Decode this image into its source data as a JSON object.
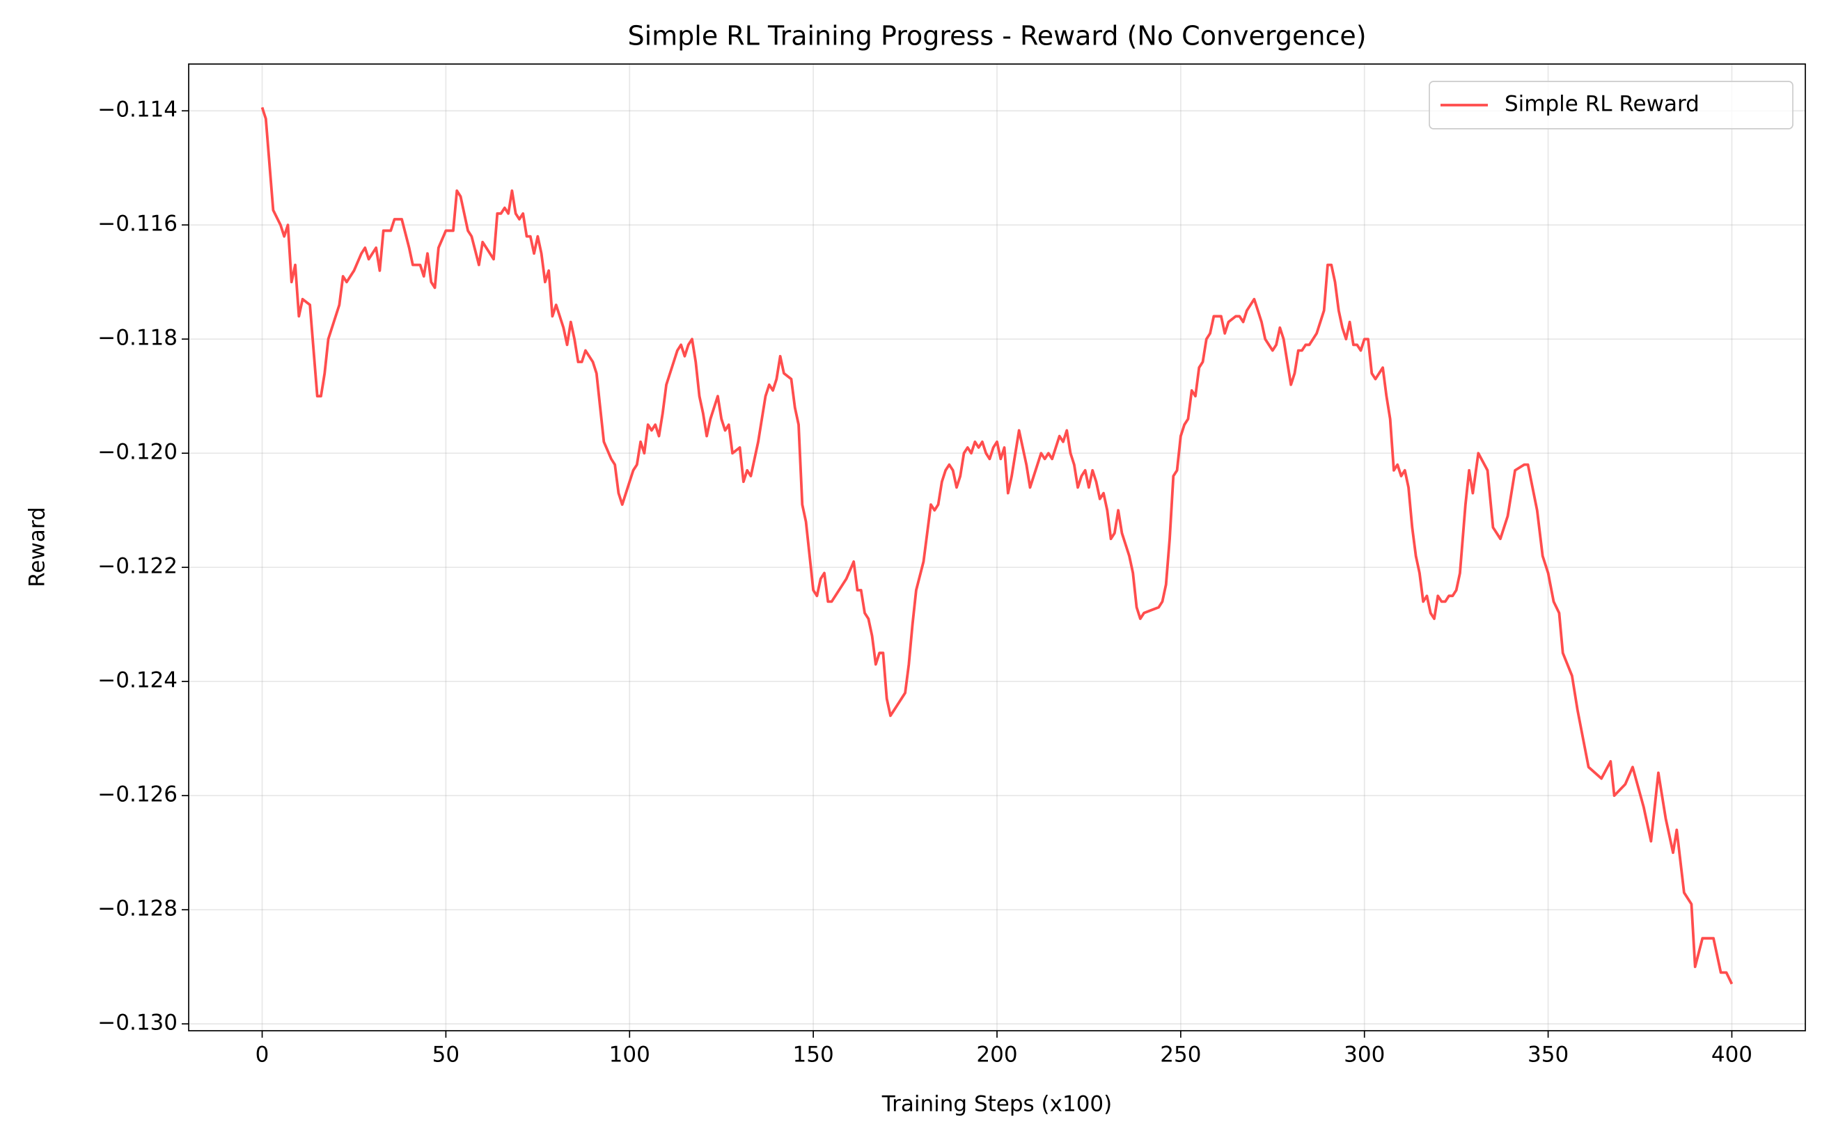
{
  "chart_data": {
    "type": "line",
    "title": "Simple RL Training Progress - Reward (No Convergence)",
    "x_label": "Training Steps (x100)",
    "y_label": "Reward",
    "x": [
      0,
      1,
      3,
      5,
      6,
      7,
      8,
      9,
      10,
      11,
      13,
      15,
      16,
      17,
      18,
      20,
      21,
      22,
      23,
      25,
      27,
      28,
      29,
      31,
      32,
      33,
      35,
      36,
      38,
      40,
      41,
      43,
      44,
      45,
      46,
      47,
      48,
      50,
      52,
      53,
      54,
      56,
      57,
      59,
      60,
      62,
      63,
      64,
      65,
      66,
      67,
      68,
      69,
      70,
      71,
      72,
      73,
      74,
      75,
      76,
      77,
      78,
      79,
      80,
      82,
      83,
      84,
      85,
      86,
      87,
      88,
      90,
      91,
      93,
      95,
      96,
      97,
      98,
      99,
      100,
      101,
      102,
      103,
      104,
      105,
      106,
      107,
      108,
      109,
      110,
      112,
      113,
      114,
      115,
      116,
      117,
      118,
      119,
      120,
      121,
      122,
      124,
      125,
      126,
      127,
      128,
      130,
      131,
      132,
      133,
      134,
      135,
      136,
      137,
      138,
      139,
      140,
      141,
      142,
      144,
      145,
      146,
      147,
      148,
      149,
      150,
      151,
      152,
      153,
      154,
      155,
      157,
      159,
      161,
      162,
      163,
      164,
      165,
      166,
      167,
      168,
      169,
      170,
      171,
      172,
      173,
      174,
      175,
      176,
      177,
      178,
      180,
      182,
      183,
      184,
      185,
      186,
      187,
      188,
      189,
      190,
      191,
      192,
      193,
      194,
      195,
      196,
      197,
      198,
      199,
      200,
      201,
      202,
      203,
      204,
      205,
      206,
      207,
      208,
      209,
      210,
      211,
      212,
      213,
      214,
      215,
      216,
      217,
      218,
      219,
      220,
      221,
      222,
      223,
      224,
      225,
      226,
      227,
      228,
      229,
      230,
      231,
      232,
      233,
      234,
      235,
      236,
      237,
      238,
      239,
      240,
      244,
      245,
      246,
      247,
      248,
      249,
      250,
      251,
      252,
      253,
      254,
      255,
      256,
      257,
      258,
      259,
      261,
      262,
      263,
      265,
      266,
      267,
      268,
      269,
      270,
      271,
      272,
      273,
      274,
      275,
      276,
      277,
      278,
      279,
      280,
      281,
      282,
      283,
      284,
      285,
      286,
      287,
      288,
      289,
      290,
      291,
      292,
      293,
      294,
      295,
      296,
      297,
      298,
      299,
      300,
      301,
      302,
      303,
      304,
      305,
      306,
      307,
      308,
      309,
      310,
      311,
      312,
      313,
      314,
      315,
      316,
      317,
      318,
      319,
      320,
      321,
      322,
      323,
      324,
      325,
      326,
      327.5,
      328.5,
      329.5,
      331,
      333.5,
      335,
      337,
      339,
      341,
      343.5,
      344.5,
      347,
      348.5,
      350,
      351.5,
      353,
      354,
      356.5,
      358,
      359.5,
      361,
      364.5,
      367,
      368,
      371,
      373,
      376,
      378,
      379,
      380,
      382,
      384,
      385,
      387,
      389,
      390,
      392,
      395,
      397,
      398.5,
      400
    ],
    "series": [
      {
        "name": "Simple RL Reward",
        "color": "#ff4d4d",
        "values": [
          -0.11394,
          -0.11414,
          -0.11574,
          -0.116,
          -0.1162,
          -0.116,
          -0.117,
          -0.1167,
          -0.1176,
          -0.1173,
          -0.1174,
          -0.119,
          -0.119,
          -0.1186,
          -0.118,
          -0.1176,
          -0.1174,
          -0.1169,
          -0.117,
          -0.1168,
          -0.1165,
          -0.1164,
          -0.1166,
          -0.1164,
          -0.1168,
          -0.1161,
          -0.1161,
          -0.1159,
          -0.1159,
          -0.1164,
          -0.1167,
          -0.1167,
          -0.1169,
          -0.1165,
          -0.117,
          -0.1171,
          -0.1164,
          -0.1161,
          -0.1161,
          -0.1154,
          -0.1155,
          -0.1161,
          -0.1162,
          -0.1167,
          -0.1163,
          -0.1165,
          -0.1166,
          -0.1158,
          -0.1158,
          -0.1157,
          -0.1158,
          -0.1154,
          -0.1158,
          -0.1159,
          -0.1158,
          -0.1162,
          -0.1162,
          -0.1165,
          -0.1162,
          -0.1165,
          -0.117,
          -0.1168,
          -0.1176,
          -0.1174,
          -0.1178,
          -0.1181,
          -0.1177,
          -0.118,
          -0.1184,
          -0.1184,
          -0.1182,
          -0.1184,
          -0.1186,
          -0.1198,
          -0.1201,
          -0.1202,
          -0.1207,
          -0.1209,
          -0.1207,
          -0.1205,
          -0.1203,
          -0.1202,
          -0.1198,
          -0.12,
          -0.1195,
          -0.1196,
          -0.1195,
          -0.1197,
          -0.1193,
          -0.1188,
          -0.1184,
          -0.1182,
          -0.1181,
          -0.1183,
          -0.1181,
          -0.118,
          -0.1184,
          -0.119,
          -0.1193,
          -0.1197,
          -0.1194,
          -0.119,
          -0.1194,
          -0.1196,
          -0.1195,
          -0.12,
          -0.1199,
          -0.1205,
          -0.1203,
          -0.1204,
          -0.1201,
          -0.1198,
          -0.1194,
          -0.119,
          -0.1188,
          -0.1189,
          -0.1187,
          -0.1183,
          -0.1186,
          -0.1187,
          -0.1192,
          -0.1195,
          -0.1209,
          -0.1212,
          -0.1218,
          -0.1224,
          -0.1225,
          -0.1222,
          -0.1221,
          -0.1226,
          -0.1226,
          -0.1224,
          -0.1222,
          -0.1219,
          -0.1224,
          -0.1224,
          -0.1228,
          -0.1229,
          -0.1232,
          -0.1237,
          -0.1235,
          -0.1235,
          -0.1243,
          -0.1246,
          -0.1245,
          -0.1244,
          -0.1243,
          -0.1242,
          -0.1237,
          -0.123,
          -0.1224,
          -0.1219,
          -0.1209,
          -0.121,
          -0.1209,
          -0.1205,
          -0.1203,
          -0.1202,
          -0.1203,
          -0.1206,
          -0.1204,
          -0.12,
          -0.1199,
          -0.12,
          -0.1198,
          -0.1199,
          -0.1198,
          -0.12,
          -0.1201,
          -0.1199,
          -0.1198,
          -0.1201,
          -0.1199,
          -0.1207,
          -0.1204,
          -0.12,
          -0.1196,
          -0.1199,
          -0.1202,
          -0.1206,
          -0.1204,
          -0.1202,
          -0.12,
          -0.1201,
          -0.12,
          -0.1201,
          -0.1199,
          -0.1197,
          -0.1198,
          -0.1196,
          -0.12,
          -0.1202,
          -0.1206,
          -0.1204,
          -0.1203,
          -0.1206,
          -0.1203,
          -0.1205,
          -0.1208,
          -0.1207,
          -0.121,
          -0.1215,
          -0.1214,
          -0.121,
          -0.1214,
          -0.1216,
          -0.1218,
          -0.1221,
          -0.1227,
          -0.1229,
          -0.1228,
          -0.1227,
          -0.1226,
          -0.1223,
          -0.1215,
          -0.1204,
          -0.1203,
          -0.1197,
          -0.1195,
          -0.1194,
          -0.1189,
          -0.119,
          -0.1185,
          -0.1184,
          -0.118,
          -0.1179,
          -0.1176,
          -0.1176,
          -0.1179,
          -0.1177,
          -0.1176,
          -0.1176,
          -0.1177,
          -0.1175,
          -0.1174,
          -0.1173,
          -0.1175,
          -0.1177,
          -0.118,
          -0.1181,
          -0.1182,
          -0.1181,
          -0.1178,
          -0.118,
          -0.1184,
          -0.1188,
          -0.1186,
          -0.1182,
          -0.1182,
          -0.1181,
          -0.1181,
          -0.118,
          -0.1179,
          -0.1177,
          -0.1175,
          -0.1167,
          -0.1167,
          -0.117,
          -0.1175,
          -0.1178,
          -0.118,
          -0.1177,
          -0.1181,
          -0.1181,
          -0.1182,
          -0.118,
          -0.118,
          -0.1186,
          -0.1187,
          -0.1186,
          -0.1185,
          -0.119,
          -0.1194,
          -0.1203,
          -0.1202,
          -0.1204,
          -0.1203,
          -0.1206,
          -0.1213,
          -0.1218,
          -0.1221,
          -0.1226,
          -0.1225,
          -0.1228,
          -0.1229,
          -0.1225,
          -0.1226,
          -0.1226,
          -0.1225,
          -0.1225,
          -0.1224,
          -0.1221,
          -0.1209,
          -0.1203,
          -0.1207,
          -0.12,
          -0.1203,
          -0.1213,
          -0.1215,
          -0.1211,
          -0.1203,
          -0.1202,
          -0.1202,
          -0.121,
          -0.1218,
          -0.1221,
          -0.1226,
          -0.1228,
          -0.1235,
          -0.1239,
          -0.1245,
          -0.125,
          -0.1255,
          -0.1257,
          -0.1254,
          -0.126,
          -0.1258,
          -0.1255,
          -0.1262,
          -0.1268,
          -0.1262,
          -0.1256,
          -0.1264,
          -0.127,
          -0.1266,
          -0.1277,
          -0.1279,
          -0.129,
          -0.1285,
          -0.1285,
          -0.1291,
          -0.1291,
          -0.1293
        ]
      }
    ],
    "xlim": [
      -20,
      420
    ],
    "xticks": [
      0,
      50,
      100,
      150,
      200,
      250,
      300,
      350,
      400
    ],
    "ylim": [
      -0.13012,
      -0.11318
    ],
    "yticks": [
      {
        "value": -0.13,
        "label": "−0.130"
      },
      {
        "value": -0.128,
        "label": "−0.128"
      },
      {
        "value": -0.126,
        "label": "−0.126"
      },
      {
        "value": -0.124,
        "label": "−0.124"
      },
      {
        "value": -0.122,
        "label": "−0.122"
      },
      {
        "value": -0.12,
        "label": "−0.120"
      },
      {
        "value": -0.118,
        "label": "−0.118"
      },
      {
        "value": -0.116,
        "label": "−0.116"
      },
      {
        "value": -0.114,
        "label": "−0.114"
      }
    ],
    "grid": true,
    "legend": "upper right"
  }
}
